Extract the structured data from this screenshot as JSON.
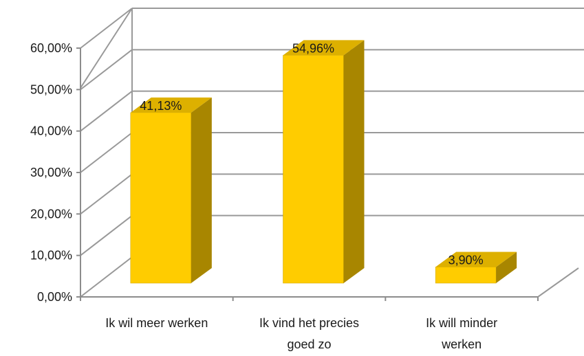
{
  "chart_data": {
    "type": "bar",
    "style": "3d-column",
    "categories": [
      [
        "Ik wil meer werken"
      ],
      [
        "Ik vind het precies",
        "goed zo"
      ],
      [
        "Ik will minder",
        "werken"
      ]
    ],
    "values": [
      41.13,
      54.96,
      3.9
    ],
    "data_labels": [
      "41,13%",
      "54,96%",
      "3,90%"
    ],
    "yticks": [
      "0,00%",
      "10,00%",
      "20,00%",
      "30,00%",
      "40,00%",
      "50,00%",
      "60,00%"
    ],
    "ylim": [
      0,
      60
    ],
    "grid": true,
    "legend": "none",
    "colors": {
      "bar_front": "#FFCC00",
      "bar_side": "#A88600",
      "bar_top": "#DDB000",
      "grid": "#999999",
      "axis": "#8c8c8c"
    }
  }
}
